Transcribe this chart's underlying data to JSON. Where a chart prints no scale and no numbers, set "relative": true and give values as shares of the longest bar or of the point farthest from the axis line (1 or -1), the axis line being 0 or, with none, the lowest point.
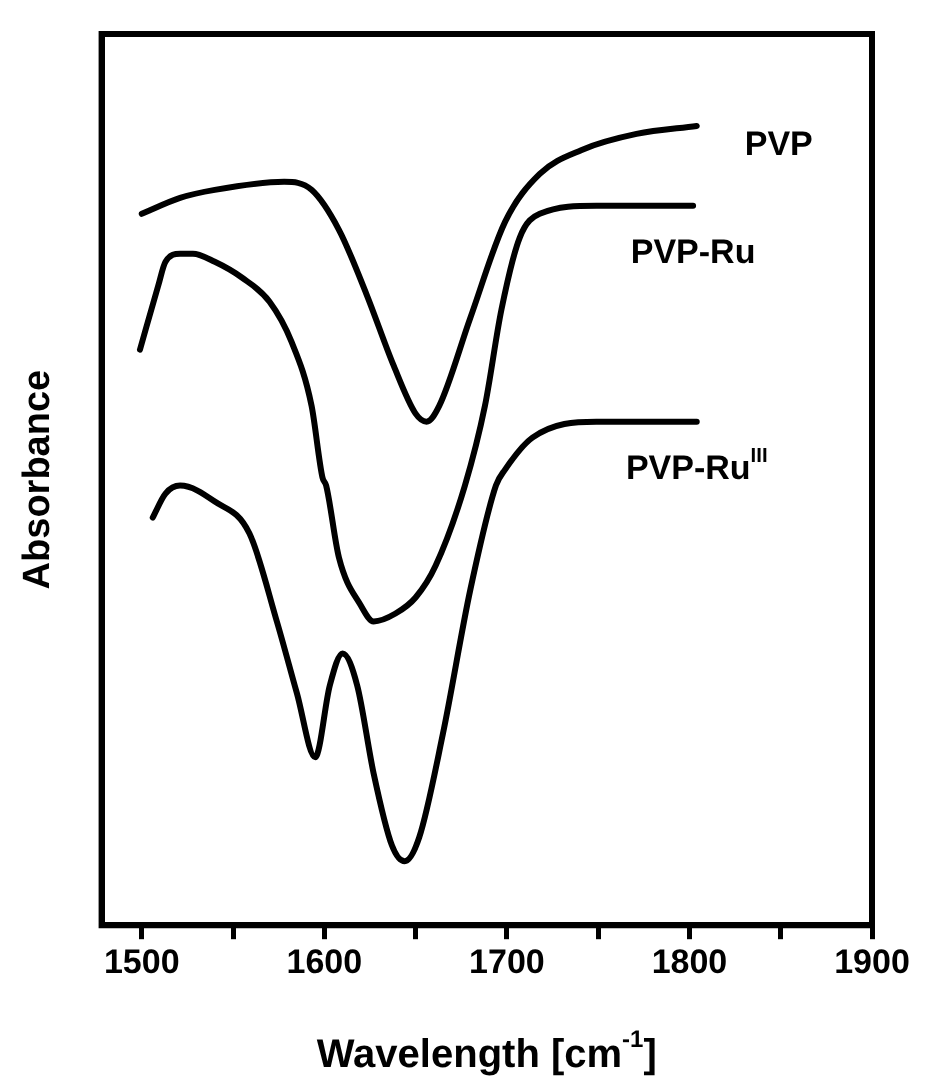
{
  "chart_data": {
    "type": "line",
    "xlabel": "Wavelength [cm$^{-1}$]",
    "ylabel": "Absorbance",
    "relative": true,
    "grid": false,
    "legend": false,
    "marker": "none",
    "line_style": "solid",
    "xlim": [
      1478,
      1900
    ],
    "xticks": [
      1500,
      {
        "value": 1550,
        "label": null
      },
      1600,
      {
        "value": 1650,
        "label": null
      },
      1700,
      {
        "value": 1750,
        "label": null
      },
      1800,
      {
        "value": 1850,
        "label": null
      },
      1900
    ],
    "series": [
      {
        "name": "PVP",
        "color": "#000000",
        "x": [
          1500,
          1521,
          1540,
          1578,
          1593,
          1608,
          1623,
          1638,
          1650,
          1656,
          1663,
          1680,
          1699,
          1718,
          1741,
          1771,
          1804
        ],
        "values": [
          0.89,
          0.91,
          0.92,
          0.93,
          0.92,
          0.87,
          0.79,
          0.7,
          0.64,
          0.63,
          0.65,
          0.76,
          0.88,
          0.94,
          0.97,
          0.99,
          1.0
        ]
      },
      {
        "name": "PVP-Ru",
        "color": "#000000",
        "x": [
          1499,
          1509,
          1513,
          1521,
          1528,
          1540,
          1555,
          1570,
          1582,
          1593,
          1599,
          1601,
          1608,
          1620,
          1627,
          1639,
          1650,
          1661,
          1677,
          1688,
          1697,
          1707,
          1718,
          1749,
          1802
        ],
        "values": [
          0.72,
          0.8,
          0.83,
          0.84,
          0.84,
          0.83,
          0.81,
          0.78,
          0.73,
          0.65,
          0.56,
          0.55,
          0.46,
          0.4,
          0.38,
          0.39,
          0.41,
          0.45,
          0.55,
          0.65,
          0.77,
          0.86,
          0.89,
          0.9,
          0.9
        ]
      },
      {
        "name": "PVP-Ru$^{III}$",
        "color": "#000000",
        "x": [
          1506,
          1513,
          1521,
          1540,
          1559,
          1574,
          1585,
          1595,
          1603,
          1610,
          1618,
          1627,
          1637,
          1644,
          1652,
          1665,
          1680,
          1694,
          1699,
          1714,
          1749,
          1804
        ],
        "values": [
          0.51,
          0.54,
          0.55,
          0.53,
          0.49,
          0.38,
          0.29,
          0.21,
          0.3,
          0.34,
          0.3,
          0.19,
          0.1,
          0.08,
          0.11,
          0.24,
          0.42,
          0.55,
          0.57,
          0.61,
          0.63,
          0.63
        ]
      }
    ]
  }
}
